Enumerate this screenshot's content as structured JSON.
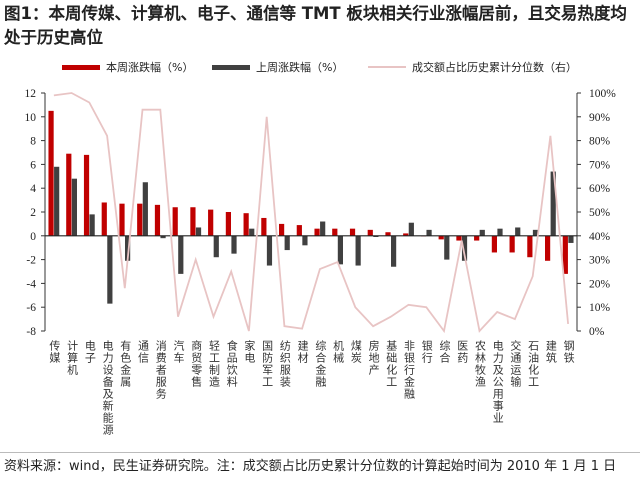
{
  "title": "图1：本周传媒、计算机、电子、通信等 TMT 板块相关行业涨幅居前，且交易热度均处于历史高位",
  "source_note": "资料来源：wind，民生证券研究院。注：成交额占比历史累计分位数的计算起始时间为 2010 年 1 月 1 日",
  "colors": {
    "this_week": "#C00000",
    "last_week": "#404040",
    "percentile": "#E8C4C4"
  },
  "chart_data": {
    "type": "bar",
    "categories": [
      "传媒",
      "计算机",
      "电子",
      "电力设备及新能源",
      "有色金属",
      "通信",
      "消费者服务",
      "汽车",
      "商贸零售",
      "轻工制造",
      "食品饮料",
      "家电",
      "国防军工",
      "纺织服装",
      "建材",
      "综合金融",
      "机械",
      "煤炭",
      "房地产",
      "基础化工",
      "非银行金融",
      "银行",
      "综合",
      "医药",
      "农林牧渔",
      "电力及公用事业",
      "交通运输",
      "石油化工",
      "建筑",
      "钢铁"
    ],
    "series": [
      {
        "name": "本周涨跌幅（%）",
        "type": "bar",
        "axis": "left",
        "values": [
          10.5,
          6.9,
          6.8,
          2.8,
          2.7,
          2.7,
          2.6,
          2.4,
          2.4,
          2.2,
          2.0,
          1.9,
          1.5,
          1.0,
          0.9,
          0.6,
          0.6,
          0.6,
          0.5,
          0.3,
          0.2,
          0.0,
          -0.3,
          -0.4,
          -0.4,
          -1.4,
          -1.4,
          -1.8,
          -2.1,
          -3.2
        ]
      },
      {
        "name": "上周涨跌幅（%）",
        "type": "bar",
        "axis": "left",
        "values": [
          5.8,
          4.8,
          1.8,
          -5.7,
          -2.1,
          4.5,
          -0.2,
          -3.2,
          0.7,
          -1.8,
          -1.5,
          0.6,
          -2.5,
          -1.2,
          -0.8,
          1.2,
          -2.4,
          -2.5,
          -0.1,
          -2.6,
          1.1,
          0.5,
          -2.0,
          -2.1,
          0.5,
          0.6,
          0.7,
          0.5,
          5.4,
          -0.6
        ]
      },
      {
        "name": "成交额占比历史累计分位数（右）",
        "type": "line",
        "axis": "right",
        "values": [
          99,
          100,
          96,
          82,
          18,
          93,
          93,
          6,
          30,
          6,
          25,
          0,
          90,
          2,
          1,
          26,
          29,
          10,
          2,
          6,
          11,
          10,
          0,
          38,
          0,
          8,
          5,
          23,
          82,
          3
        ]
      }
    ],
    "left_axis": {
      "min": -8,
      "max": 12,
      "ticks": [
        "12",
        "10",
        "8",
        "6",
        "4",
        "2",
        "0",
        "-2",
        "-4",
        "-6",
        "-8"
      ]
    },
    "right_axis": {
      "min": 0,
      "max": 100,
      "ticks": [
        "100%",
        "90%",
        "80%",
        "70%",
        "60%",
        "50%",
        "40%",
        "30%",
        "20%",
        "10%",
        "0%"
      ]
    },
    "legend": "top",
    "grid": false
  }
}
